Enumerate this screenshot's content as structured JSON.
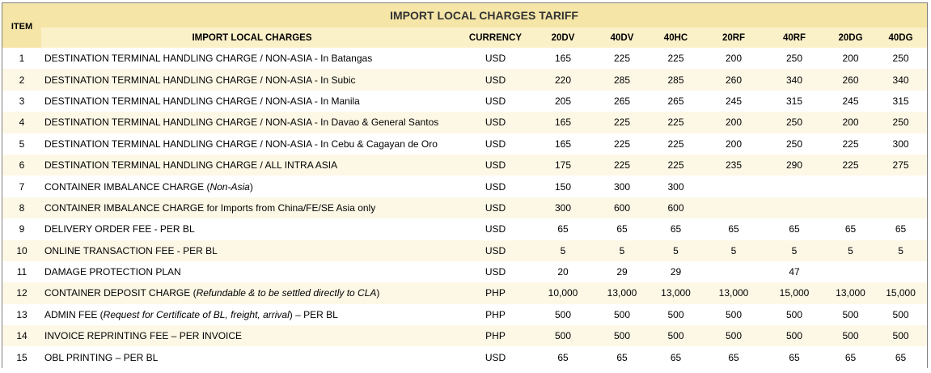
{
  "header": {
    "title": "IMPORT LOCAL CHARGES TARIFF",
    "item_label": "ITEM",
    "desc_label": "IMPORT LOCAL CHARGES",
    "currency_label": "CURRENCY",
    "columns": [
      "20DV",
      "40DV",
      "40HC",
      "20RF",
      "40RF",
      "20DG",
      "40DG"
    ]
  },
  "rows": [
    {
      "item": "1",
      "desc": "DESTINATION TERMINAL HANDLING CHARGE / NON-ASIA - In Batangas",
      "note": "",
      "suffix": "",
      "currency": "USD",
      "values": [
        "165",
        "225",
        "225",
        "200",
        "250",
        "200",
        "250"
      ]
    },
    {
      "item": "2",
      "desc": "DESTINATION TERMINAL HANDLING CHARGE / NON-ASIA - In Subic",
      "note": "",
      "suffix": "",
      "currency": "USD",
      "values": [
        "220",
        "285",
        "285",
        "260",
        "340",
        "260",
        "340"
      ]
    },
    {
      "item": "3",
      "desc": "DESTINATION TERMINAL HANDLING CHARGE / NON-ASIA - In Manila",
      "note": "",
      "suffix": "",
      "currency": "USD",
      "values": [
        "205",
        "265",
        "265",
        "245",
        "315",
        "245",
        "315"
      ]
    },
    {
      "item": "4",
      "desc": "DESTINATION TERMINAL HANDLING CHARGE / NON-ASIA - In Davao & General Santos",
      "note": "",
      "suffix": "",
      "currency": "USD",
      "values": [
        "165",
        "225",
        "225",
        "200",
        "250",
        "200",
        "250"
      ]
    },
    {
      "item": "5",
      "desc": "DESTINATION TERMINAL HANDLING CHARGE / NON-ASIA - In Cebu & Cagayan de Oro",
      "note": "",
      "suffix": "",
      "currency": "USD",
      "values": [
        "165",
        "225",
        "225",
        "200",
        "250",
        "225",
        "300"
      ]
    },
    {
      "item": "6",
      "desc": "DESTINATION TERMINAL HANDLING CHARGE / ALL INTRA ASIA",
      "note": "",
      "suffix": "",
      "currency": "USD",
      "values": [
        "175",
        "225",
        "225",
        "235",
        "290",
        "225",
        "275"
      ]
    },
    {
      "item": "7",
      "desc": "CONTAINER IMBALANCE CHARGE (",
      "note": "Non-Asia",
      "suffix": ")",
      "currency": "USD",
      "values": [
        "150",
        "300",
        "300",
        "",
        "",
        "",
        ""
      ]
    },
    {
      "item": "8",
      "desc": "CONTAINER IMBALANCE CHARGE for Imports from China/FE/SE Asia only",
      "note": "",
      "suffix": "",
      "currency": "USD",
      "values": [
        "300",
        "600",
        "600",
        "",
        "",
        "",
        ""
      ]
    },
    {
      "item": "9",
      "desc": "DELIVERY ORDER FEE - PER BL",
      "note": "",
      "suffix": "",
      "currency": "USD",
      "values": [
        "65",
        "65",
        "65",
        "65",
        "65",
        "65",
        "65"
      ]
    },
    {
      "item": "10",
      "desc": "ONLINE TRANSACTION FEE - PER BL",
      "note": "",
      "suffix": "",
      "currency": "USD",
      "values": [
        "5",
        "5",
        "5",
        "5",
        "5",
        "5",
        "5"
      ]
    },
    {
      "item": "11",
      "desc": "DAMAGE PROTECTION PLAN",
      "note": "",
      "suffix": "",
      "currency": "USD",
      "values": [
        "20",
        "29",
        "29",
        "",
        "47",
        "",
        ""
      ]
    },
    {
      "item": "12",
      "desc": "CONTAINER DEPOSIT CHARGE (",
      "note": "Refundable & to be settled directly to CLA",
      "suffix": ")",
      "currency": "PHP",
      "values": [
        "10,000",
        "13,000",
        "13,000",
        "13,000",
        "15,000",
        "13,000",
        "15,000"
      ]
    },
    {
      "item": "13",
      "desc": "ADMIN FEE (",
      "note": "Request for Certificate of BL, freight, arrival",
      "suffix": ") – PER BL",
      "currency": "PHP",
      "values": [
        "500",
        "500",
        "500",
        "500",
        "500",
        "500",
        "500"
      ]
    },
    {
      "item": "14",
      "desc": "INVOICE REPRINTING FEE – PER INVOICE",
      "note": "",
      "suffix": "",
      "currency": "PHP",
      "values": [
        "500",
        "500",
        "500",
        "500",
        "500",
        "500",
        "500"
      ]
    },
    {
      "item": "15",
      "desc": "OBL PRINTING – PER BL",
      "note": "",
      "suffix": "",
      "currency": "USD",
      "values": [
        "65",
        "65",
        "65",
        "65",
        "65",
        "65",
        "65"
      ]
    }
  ],
  "colors": {
    "header_bg": "#f5e6a8",
    "subheader_bg": "#fbf1c9",
    "stripe_bg": "#fdf8e6"
  }
}
